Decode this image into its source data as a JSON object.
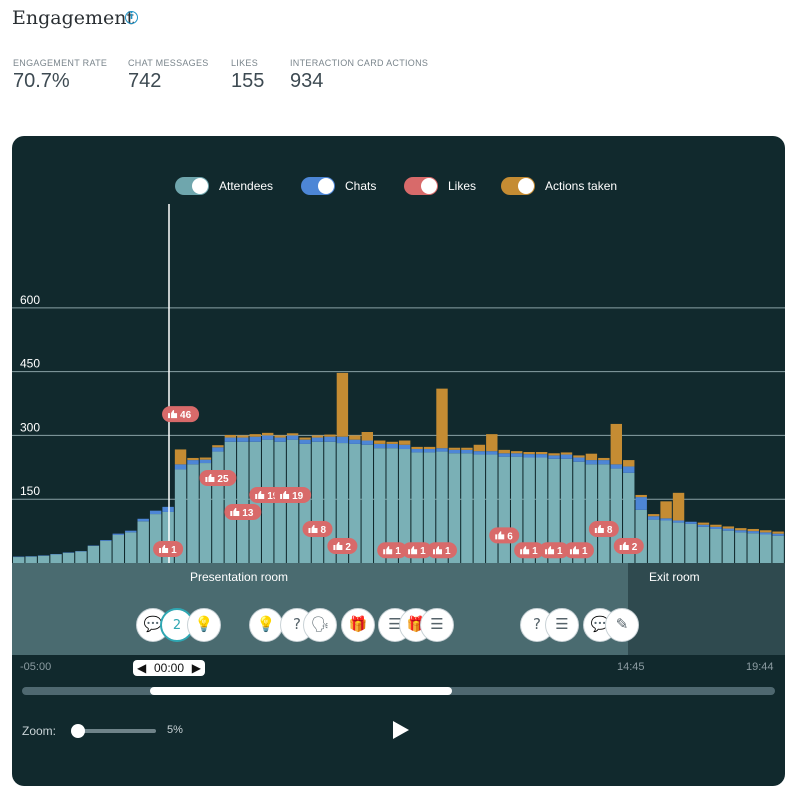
{
  "header": {
    "title": "Engagement",
    "info_icon": "info-icon"
  },
  "stats": [
    {
      "label": "ENGAGEMENT RATE",
      "value": "70.7%"
    },
    {
      "label": "CHAT MESSAGES",
      "value": "742"
    },
    {
      "label": "LIKES",
      "value": "155"
    },
    {
      "label": "INTERACTION CARD ACTIONS",
      "value": "934"
    }
  ],
  "legend": [
    {
      "label": "Attendees",
      "color": "#6fa6ad"
    },
    {
      "label": "Chats",
      "color": "#4d86d6"
    },
    {
      "label": "Likes",
      "color": "#d86a6a"
    },
    {
      "label": "Actions taken",
      "color": "#c58c33"
    }
  ],
  "zones": {
    "presentation": "Presentation room",
    "exit": "Exit room"
  },
  "timeline": {
    "start": "-05:00",
    "current": "00:00",
    "mark": "14:45",
    "end": "19:44"
  },
  "zoom": {
    "label": "Zoom:",
    "value": "5%"
  },
  "icon_buttons": [
    {
      "name": "chat-icon",
      "glyph": "💬"
    },
    {
      "name": "count-badge",
      "glyph": "2"
    },
    {
      "name": "lightbulb-icon",
      "glyph": "💡"
    },
    {
      "name": "lightbulb-icon",
      "glyph": "💡"
    },
    {
      "name": "question-icon",
      "glyph": "?"
    },
    {
      "name": "speaker-icon",
      "glyph": "🗣"
    },
    {
      "name": "gift-icon",
      "glyph": "🎁"
    },
    {
      "name": "list-icon",
      "glyph": "☰"
    },
    {
      "name": "gift-icon",
      "glyph": "🎁"
    },
    {
      "name": "list-icon",
      "glyph": "☰"
    },
    {
      "name": "question-icon",
      "glyph": "?"
    },
    {
      "name": "list-icon",
      "glyph": "☰"
    },
    {
      "name": "chat-icon",
      "glyph": "💬"
    },
    {
      "name": "pencil-icon",
      "glyph": "✎"
    }
  ],
  "chart_data": {
    "type": "bar",
    "stacked": true,
    "ylim": [
      0,
      750
    ],
    "yticks": [
      150,
      300,
      450,
      600
    ],
    "series": [
      {
        "name": "Attendees",
        "values": [
          14,
          15,
          17,
          20,
          24,
          27,
          40,
          52,
          66,
          72,
          98,
          115,
          120,
          220,
          232,
          235,
          262,
          285,
          285,
          285,
          290,
          285,
          290,
          280,
          285,
          285,
          282,
          280,
          278,
          270,
          270,
          268,
          260,
          260,
          262,
          258,
          258,
          255,
          255,
          250,
          250,
          248,
          248,
          245,
          245,
          238,
          232,
          232,
          222,
          212,
          125,
          102,
          100,
          95,
          92,
          85,
          80,
          76,
          72,
          70,
          67,
          64,
          62
        ]
      },
      {
        "name": "Chats",
        "values": [
          1,
          1,
          1,
          1,
          1,
          1,
          1,
          2,
          3,
          4,
          6,
          8,
          12,
          12,
          10,
          8,
          10,
          10,
          10,
          12,
          10,
          10,
          10,
          10,
          10,
          12,
          15,
          10,
          10,
          10,
          10,
          10,
          8,
          8,
          8,
          8,
          8,
          8,
          8,
          8,
          8,
          8,
          8,
          8,
          10,
          10,
          10,
          10,
          10,
          15,
          30,
          8,
          5,
          5,
          5,
          5,
          5,
          5,
          5,
          5,
          5,
          5,
          5
        ]
      },
      {
        "name": "Actions taken",
        "values": [
          0,
          0,
          0,
          0,
          0,
          0,
          0,
          0,
          0,
          0,
          0,
          0,
          0,
          35,
          5,
          5,
          5,
          6,
          5,
          6,
          6,
          5,
          5,
          5,
          5,
          5,
          150,
          10,
          20,
          8,
          5,
          10,
          5,
          5,
          140,
          5,
          5,
          15,
          40,
          8,
          5,
          5,
          5,
          5,
          5,
          5,
          15,
          5,
          95,
          15,
          5,
          5,
          40,
          65,
          0,
          5,
          5,
          5,
          5,
          5,
          5,
          5,
          5
        ]
      }
    ],
    "likes_annotations": [
      {
        "label": "46",
        "bar": 13,
        "level": 350
      },
      {
        "label": "25",
        "bar": 16,
        "level": 200
      },
      {
        "label": "13",
        "bar": 18,
        "level": 120
      },
      {
        "label": "19",
        "bar": 20,
        "level": 160
      },
      {
        "label": "19",
        "bar": 22,
        "level": 160
      },
      {
        "label": "8",
        "bar": 24,
        "level": 80
      },
      {
        "label": "1",
        "bar": 12,
        "level": 33
      },
      {
        "label": "2",
        "bar": 26,
        "level": 40
      },
      {
        "label": "1",
        "bar": 30,
        "level": 30
      },
      {
        "label": "1",
        "bar": 32,
        "level": 30
      },
      {
        "label": "1",
        "bar": 34,
        "level": 30
      },
      {
        "label": "6",
        "bar": 39,
        "level": 65
      },
      {
        "label": "1",
        "bar": 41,
        "level": 30
      },
      {
        "label": "1",
        "bar": 43,
        "level": 30
      },
      {
        "label": "1",
        "bar": 45,
        "level": 30
      },
      {
        "label": "8",
        "bar": 47,
        "level": 80
      },
      {
        "label": "2",
        "bar": 49,
        "level": 40
      }
    ]
  }
}
